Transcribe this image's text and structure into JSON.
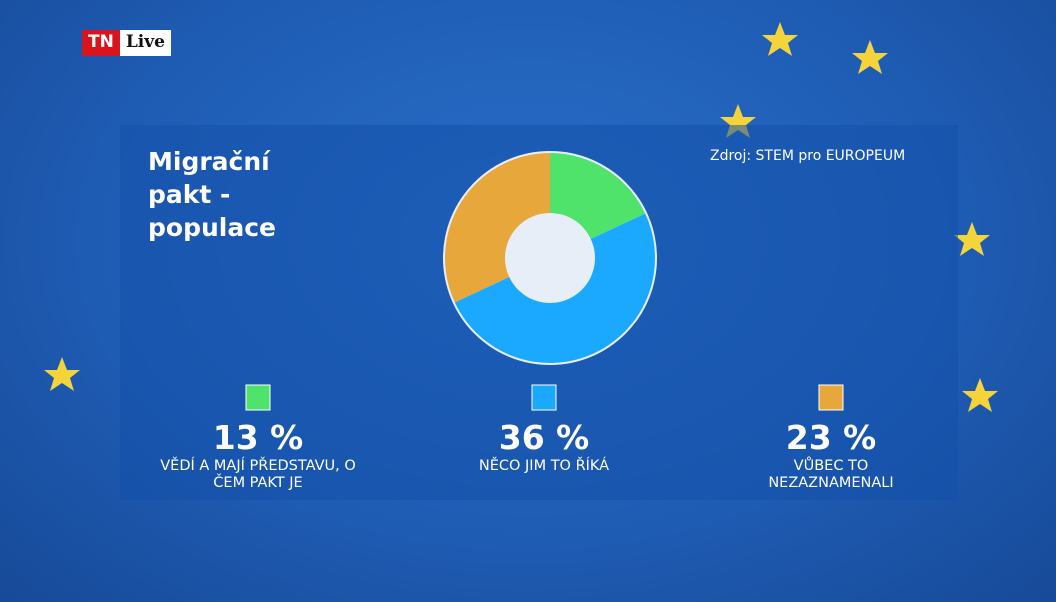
{
  "logo": {
    "brand": "TN",
    "channel": "Live"
  },
  "chart_data": {
    "type": "pie",
    "donut": true,
    "title": "Migrační pakt - populace",
    "source": "Zdroj: STEM pro EUROPEUM",
    "categories": [
      "VĚDÍ A MAJÍ PŘEDSTAVU, O ČEM PAKT JE",
      "NĚCO JIM TO ŘÍKÁ",
      "VŮBEC TO NEZAZNAMENALI"
    ],
    "values": [
      13,
      36,
      23
    ],
    "value_labels": [
      "13 %",
      "36 %",
      "23 %"
    ],
    "colors": [
      "#4fe36c",
      "#1aa9ff",
      "#e8a73a"
    ]
  }
}
